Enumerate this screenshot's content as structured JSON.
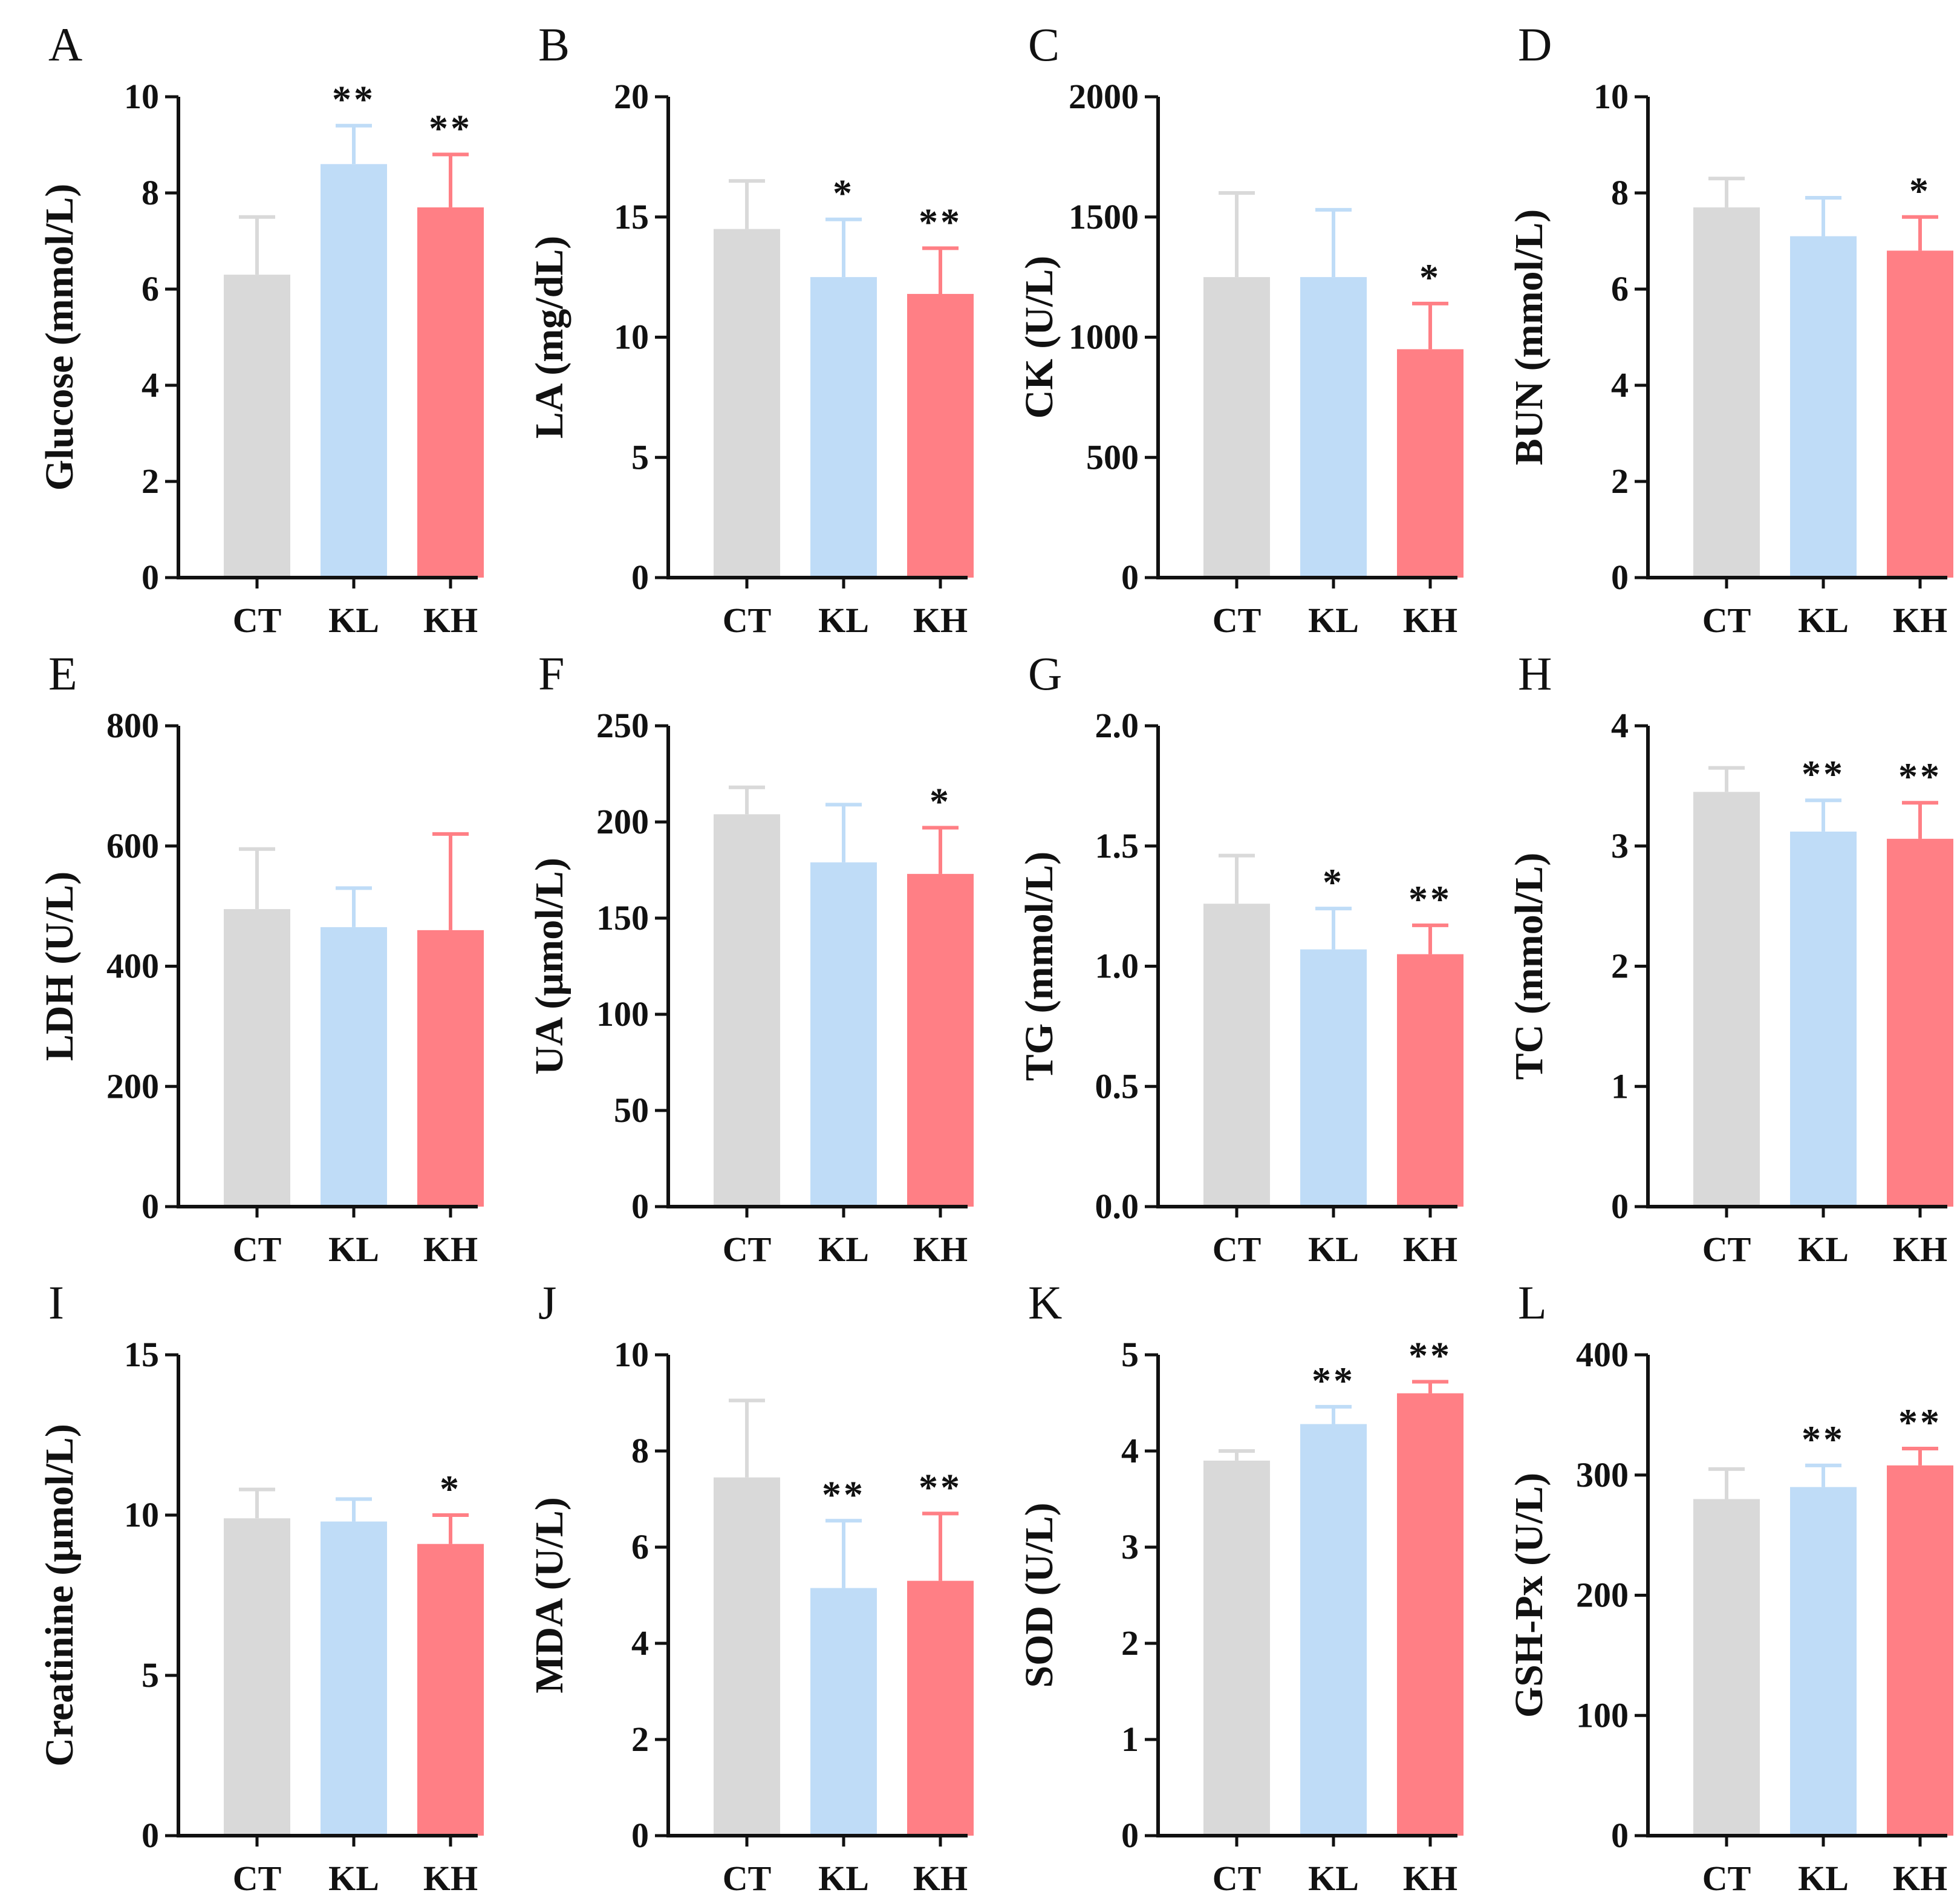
{
  "chart_data": [
    {
      "panel": "A",
      "type": "bar",
      "ylabel": "Glucose (mmol/L)",
      "categories": [
        "CT",
        "KL",
        "KH"
      ],
      "ylim": [
        0,
        10
      ],
      "ticks": [
        0,
        2,
        4,
        6,
        8,
        10
      ],
      "tick_labels": [
        "0",
        "2",
        "4",
        "6",
        "8",
        "10"
      ],
      "values": [
        6.3,
        8.6,
        7.7
      ],
      "errors": [
        1.2,
        0.8,
        1.1
      ],
      "significance": [
        "",
        "**",
        "**"
      ]
    },
    {
      "panel": "B",
      "type": "bar",
      "ylabel": "LA (mg/dL)",
      "categories": [
        "CT",
        "KL",
        "KH"
      ],
      "ylim": [
        0,
        20
      ],
      "ticks": [
        0,
        5,
        10,
        15,
        20
      ],
      "tick_labels": [
        "0",
        "5",
        "10",
        "15",
        "20"
      ],
      "values": [
        14.5,
        12.5,
        11.8
      ],
      "errors": [
        2.0,
        2.4,
        1.9
      ],
      "significance": [
        "",
        "*",
        "**"
      ]
    },
    {
      "panel": "C",
      "type": "bar",
      "ylabel": "CK (U/L)",
      "categories": [
        "CT",
        "KL",
        "KH"
      ],
      "ylim": [
        0,
        2000
      ],
      "ticks": [
        0,
        500,
        1000,
        1500,
        2000
      ],
      "tick_labels": [
        "0",
        "500",
        "1000",
        "1500",
        "2000"
      ],
      "values": [
        1250,
        1250,
        950
      ],
      "errors": [
        350,
        280,
        190
      ],
      "significance": [
        "",
        "",
        "*"
      ]
    },
    {
      "panel": "D",
      "type": "bar",
      "ylabel": "BUN (mmol/L)",
      "categories": [
        "CT",
        "KL",
        "KH"
      ],
      "ylim": [
        0,
        10
      ],
      "ticks": [
        0,
        2,
        4,
        6,
        8,
        10
      ],
      "tick_labels": [
        "0",
        "2",
        "4",
        "6",
        "8",
        "10"
      ],
      "values": [
        7.7,
        7.1,
        6.8
      ],
      "errors": [
        0.6,
        0.8,
        0.7
      ],
      "significance": [
        "",
        "",
        "*"
      ]
    },
    {
      "panel": "E",
      "type": "bar",
      "ylabel": "LDH (U/L)",
      "categories": [
        "CT",
        "KL",
        "KH"
      ],
      "ylim": [
        0,
        800
      ],
      "ticks": [
        0,
        200,
        400,
        600,
        800
      ],
      "tick_labels": [
        "0",
        "200",
        "400",
        "600",
        "800"
      ],
      "values": [
        495,
        465,
        460
      ],
      "errors": [
        100,
        65,
        160
      ],
      "significance": [
        "",
        "",
        ""
      ]
    },
    {
      "panel": "F",
      "type": "bar",
      "ylabel": "UA (µmol/L)",
      "categories": [
        "CT",
        "KL",
        "KH"
      ],
      "ylim": [
        0,
        250
      ],
      "ticks": [
        0,
        50,
        100,
        150,
        200,
        250
      ],
      "tick_labels": [
        "0",
        "50",
        "100",
        "150",
        "200",
        "250"
      ],
      "values": [
        204,
        179,
        173
      ],
      "errors": [
        14,
        30,
        24
      ],
      "significance": [
        "",
        "",
        "*"
      ]
    },
    {
      "panel": "G",
      "type": "bar",
      "ylabel": "TG (mmol/L)",
      "categories": [
        "CT",
        "KL",
        "KH"
      ],
      "ylim": [
        0,
        2.0
      ],
      "ticks": [
        0,
        0.5,
        1.0,
        1.5,
        2.0
      ],
      "tick_labels": [
        "0.0",
        "0.5",
        "1.0",
        "1.5",
        "2.0"
      ],
      "values": [
        1.26,
        1.07,
        1.05
      ],
      "errors": [
        0.2,
        0.17,
        0.12
      ],
      "significance": [
        "",
        "*",
        "**"
      ]
    },
    {
      "panel": "H",
      "type": "bar",
      "ylabel": "TC (mmol/L)",
      "categories": [
        "CT",
        "KL",
        "KH"
      ],
      "ylim": [
        0,
        4
      ],
      "ticks": [
        0,
        1,
        2,
        3,
        4
      ],
      "tick_labels": [
        "0",
        "1",
        "2",
        "3",
        "4"
      ],
      "values": [
        3.45,
        3.12,
        3.06
      ],
      "errors": [
        0.2,
        0.26,
        0.3
      ],
      "significance": [
        "",
        "**",
        "**"
      ]
    },
    {
      "panel": "I",
      "type": "bar",
      "ylabel": "Creatinine (µmol/L)",
      "categories": [
        "CT",
        "KL",
        "KH"
      ],
      "ylim": [
        0,
        15
      ],
      "ticks": [
        0,
        5,
        10,
        15
      ],
      "tick_labels": [
        "0",
        "5",
        "10",
        "15"
      ],
      "values": [
        9.9,
        9.8,
        9.1
      ],
      "errors": [
        0.9,
        0.7,
        0.9
      ],
      "significance": [
        "",
        "",
        "*"
      ]
    },
    {
      "panel": "J",
      "type": "bar",
      "ylabel": "MDA (U/L)",
      "categories": [
        "CT",
        "KL",
        "KH"
      ],
      "ylim": [
        0,
        10
      ],
      "ticks": [
        0,
        2,
        4,
        6,
        8,
        10
      ],
      "tick_labels": [
        "0",
        "2",
        "4",
        "6",
        "8",
        "10"
      ],
      "values": [
        7.45,
        5.15,
        5.3
      ],
      "errors": [
        1.6,
        1.4,
        1.4
      ],
      "significance": [
        "",
        "**",
        "**"
      ]
    },
    {
      "panel": "K",
      "type": "bar",
      "ylabel": "SOD (U/L)",
      "categories": [
        "CT",
        "KL",
        "KH"
      ],
      "ylim": [
        0,
        5
      ],
      "ticks": [
        0,
        1,
        2,
        3,
        4,
        5
      ],
      "tick_labels": [
        "0",
        "1",
        "2",
        "3",
        "4",
        "5"
      ],
      "values": [
        3.9,
        4.28,
        4.6
      ],
      "errors": [
        0.1,
        0.18,
        0.12
      ],
      "significance": [
        "",
        "**",
        "**"
      ]
    },
    {
      "panel": "L",
      "type": "bar",
      "ylabel": "GSH-Px (U/L)",
      "categories": [
        "CT",
        "KL",
        "KH"
      ],
      "ylim": [
        0,
        400
      ],
      "ticks": [
        0,
        100,
        200,
        300,
        400
      ],
      "tick_labels": [
        "0",
        "100",
        "200",
        "300",
        "400"
      ],
      "values": [
        280,
        290,
        308
      ],
      "errors": [
        25,
        18,
        14
      ],
      "significance": [
        "",
        "**",
        "**"
      ]
    }
  ],
  "colors": {
    "CT": "#d9d9d9",
    "KL": "#bfdcf7",
    "KH": "#ff7f85",
    "axis": "#111111",
    "error_CT": "#d9d9d9",
    "error_KL": "#bfdcf7",
    "error_KH": "#ff7f85"
  }
}
